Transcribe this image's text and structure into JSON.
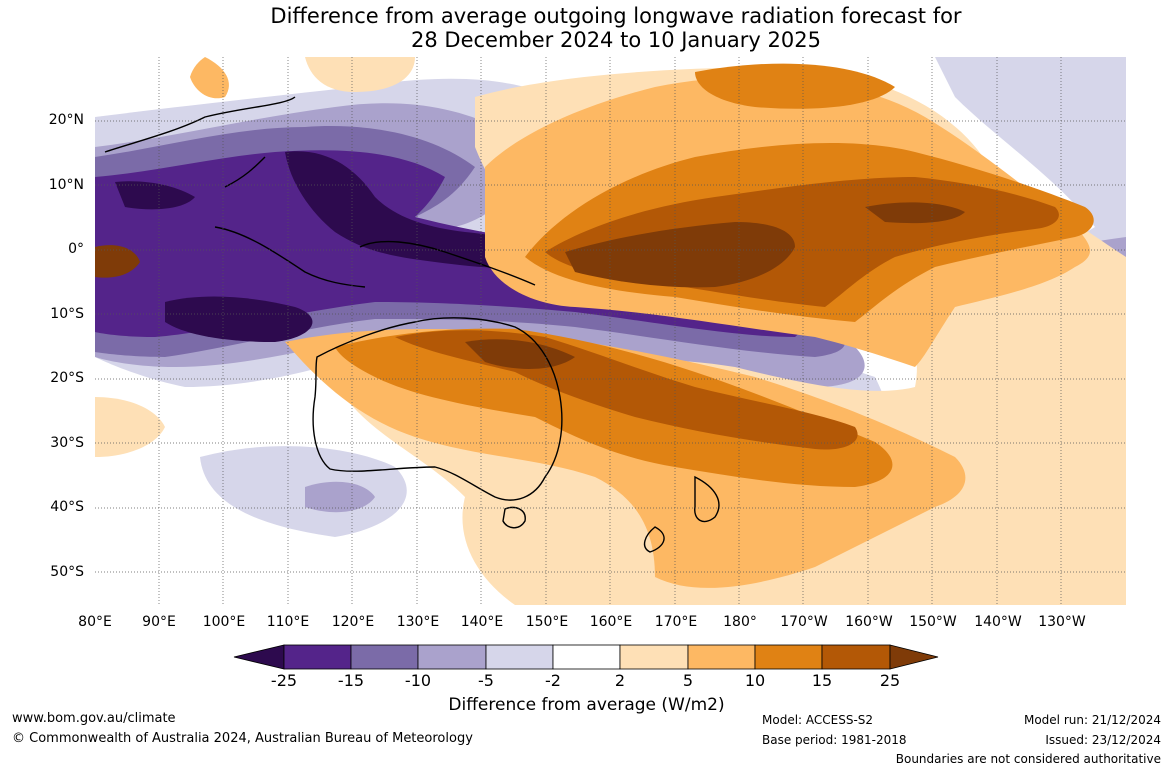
{
  "title_line1": "Difference from average outgoing longwave radiation forecast for",
  "title_line2": "28 December 2024 to 10 January 2025",
  "lat_labels": [
    "20°N",
    "10°N",
    "0°",
    "10°S",
    "20°S",
    "30°S",
    "40°S",
    "50°S"
  ],
  "lon_labels": [
    "80°E",
    "90°E",
    "100°E",
    "110°E",
    "120°E",
    "130°E",
    "140°E",
    "150°E",
    "160°E",
    "170°E",
    "180°",
    "170°W",
    "160°W",
    "150°W",
    "140°W",
    "130°W"
  ],
  "colorbar": {
    "ticks": [
      "-25",
      "-15",
      "-10",
      "-5",
      "-2",
      "2",
      "5",
      "10",
      "15",
      "25"
    ],
    "colors": {
      "neg_extreme": "#2d0a4e",
      "neg25": "#54248a",
      "neg15": "#7b6ba8",
      "neg10": "#aaa2cc",
      "neg5": "#d6d6ea",
      "zero": "#ffffff",
      "pos2": "#fee0b6",
      "pos5": "#fdb863",
      "pos10": "#e08214",
      "pos15": "#b35806",
      "pos_extreme": "#7f3b08"
    },
    "label": "Difference from average (W/m2)"
  },
  "footer": {
    "website": "www.bom.gov.au/climate",
    "copyright": "© Commonwealth of Australia 2024, Australian Bureau of Meteorology",
    "model": "Model: ACCESS-S2",
    "base_period": "Base period: 1981-2018",
    "model_run": "Model run: 21/12/2024",
    "issued": "Issued: 23/12/2024",
    "disclaimer": "Boundaries are not considered authoritative"
  }
}
